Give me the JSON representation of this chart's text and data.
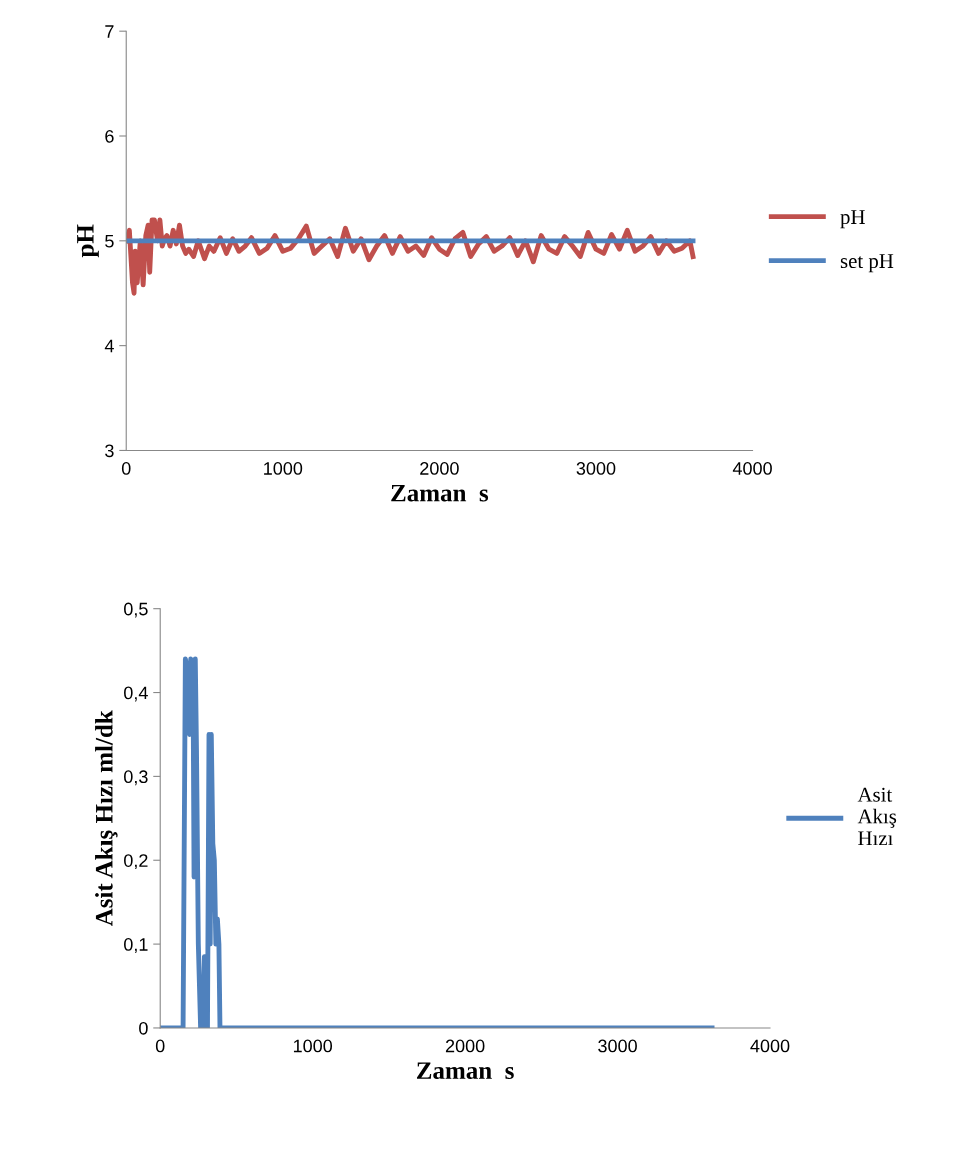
{
  "chart_data": [
    {
      "type": "line",
      "ylabel": "pH",
      "xlabel": "Zaman  s",
      "xlim": [
        0,
        4000
      ],
      "xticks": [
        0,
        1000,
        2000,
        3000,
        4000
      ],
      "ylim": [
        3,
        7
      ],
      "yticks": [
        3,
        4,
        5,
        6,
        7
      ],
      "legend": "right",
      "grid": false,
      "marker": "none",
      "line_style": "solid",
      "series": [
        {
          "name": "pH",
          "color": "#c0504d",
          "x": [
            0,
            20,
            40,
            50,
            57,
            70,
            90,
            108,
            125,
            140,
            150,
            165,
            180,
            200,
            215,
            230,
            245,
            260,
            280,
            300,
            320,
            340,
            360,
            380,
            400,
            430,
            460,
            500,
            530,
            560,
            600,
            640,
            680,
            720,
            760,
            800,
            850,
            900,
            950,
            1000,
            1050,
            1100,
            1150,
            1200,
            1250,
            1300,
            1350,
            1400,
            1450,
            1500,
            1550,
            1600,
            1650,
            1700,
            1750,
            1800,
            1850,
            1900,
            1950,
            2000,
            2050,
            2100,
            2150,
            2200,
            2250,
            2300,
            2350,
            2400,
            2450,
            2500,
            2550,
            2600,
            2650,
            2700,
            2750,
            2800,
            2850,
            2900,
            2950,
            3000,
            3050,
            3100,
            3150,
            3200,
            3250,
            3300,
            3350,
            3400,
            3450,
            3500,
            3550,
            3600,
            3620
          ],
          "values": [
            5.0,
            5.1,
            4.6,
            4.5,
            4.9,
            4.6,
            5.0,
            4.58,
            5.05,
            5.15,
            4.7,
            5.2,
            5.2,
            5.0,
            5.2,
            4.95,
            5.02,
            5.05,
            4.95,
            5.1,
            4.97,
            5.15,
            4.95,
            4.88,
            4.92,
            4.85,
            5.0,
            4.83,
            4.95,
            4.9,
            5.03,
            4.88,
            5.02,
            4.9,
            4.95,
            5.03,
            4.88,
            4.93,
            5.05,
            4.9,
            4.93,
            5.02,
            5.14,
            4.88,
            4.95,
            5.02,
            4.85,
            5.12,
            4.9,
            5.02,
            4.82,
            4.95,
            5.05,
            4.88,
            5.04,
            4.9,
            4.95,
            4.86,
            5.03,
            4.92,
            4.87,
            5.02,
            5.08,
            4.85,
            4.97,
            5.04,
            4.9,
            4.95,
            5.03,
            4.86,
            5.0,
            4.8,
            5.05,
            4.92,
            4.88,
            5.04,
            4.95,
            4.85,
            5.08,
            4.92,
            4.88,
            5.06,
            4.92,
            5.1,
            4.9,
            4.95,
            5.04,
            4.88,
            5.0,
            4.9,
            4.93,
            5.0,
            4.85
          ]
        },
        {
          "name": "set pH",
          "color": "#4f81bd",
          "x": [
            0,
            3620
          ],
          "values": [
            5,
            5
          ]
        }
      ]
    },
    {
      "type": "line",
      "ylabel": "Asit Akış Hızı ml/dk",
      "xlabel": "Zaman  s",
      "xlim": [
        0,
        4000
      ],
      "xticks": [
        0,
        1000,
        2000,
        3000,
        4000
      ],
      "ylim": [
        0,
        0.5
      ],
      "yticks": [
        {
          "value": 0,
          "label": "0"
        },
        {
          "value": 0.1,
          "label": "0,1"
        },
        {
          "value": 0.2,
          "label": "0,2"
        },
        {
          "value": 0.3,
          "label": "0,3"
        },
        {
          "value": 0.4,
          "label": "0,4"
        },
        {
          "value": 0.5,
          "label": "0,5"
        }
      ],
      "legend": "right",
      "grid": false,
      "marker": "none",
      "line_style": "solid",
      "series": [
        {
          "name": "Asit Akış Hızı",
          "color": "#4f81bd",
          "x": [
            0,
            150,
            165,
            175,
            193,
            200,
            215,
            222,
            230,
            238,
            250,
            265,
            280,
            290,
            300,
            310,
            320,
            328,
            335,
            345,
            355,
            365,
            375,
            385,
            392,
            400,
            3620
          ],
          "values": [
            0,
            0,
            0.44,
            0.43,
            0.35,
            0.44,
            0.43,
            0.18,
            0.44,
            0.33,
            0.1,
            0,
            0,
            0.085,
            0.085,
            0,
            0.35,
            0.1,
            0.35,
            0.22,
            0.2,
            0.1,
            0.13,
            0.1,
            0,
            0,
            0
          ]
        }
      ]
    }
  ]
}
